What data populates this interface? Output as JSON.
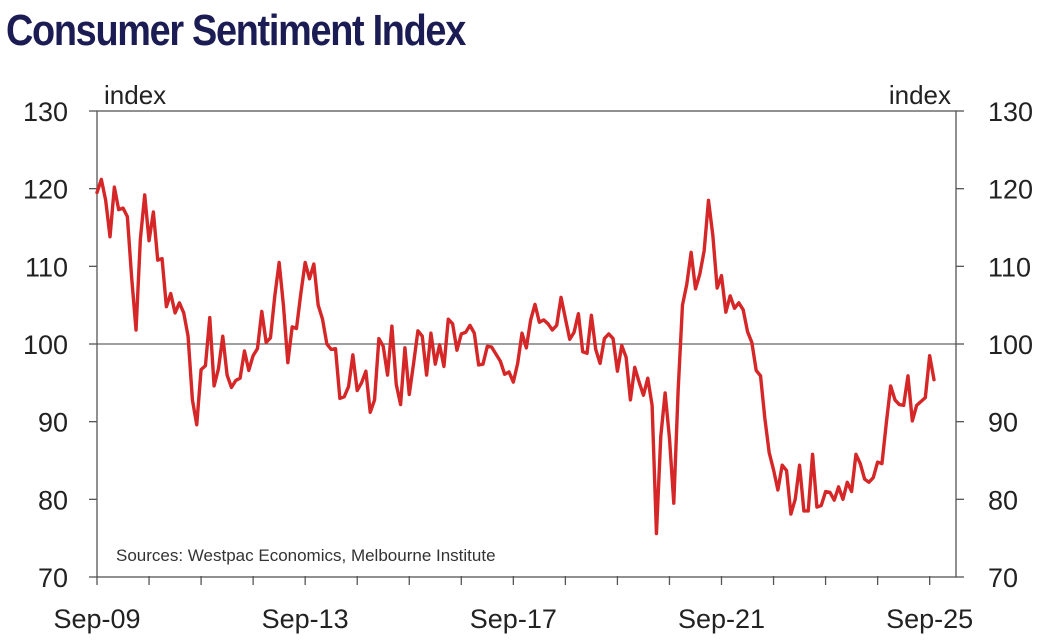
{
  "chart_data": {
    "type": "line",
    "title": "Consumer Sentiment Index",
    "ylabel_left": "index",
    "ylabel_right": "index",
    "source": "Sources: Westpac Economics, Melbourne Institute",
    "ylim": [
      70,
      130
    ],
    "yticks": [
      70,
      80,
      90,
      100,
      110,
      120,
      130
    ],
    "reference_line": 100,
    "x_start": "Sep-09",
    "x_end": "Sep-25",
    "x_tick_labels": [
      "Sep-09",
      "Sep-13",
      "Sep-17",
      "Sep-21",
      "Sep-25"
    ],
    "x_tick_index": [
      0,
      48,
      96,
      144,
      192
    ],
    "series": [
      {
        "name": "Consumer Sentiment Index",
        "color": "#d62728",
        "values": [
          119.5,
          121.2,
          118.5,
          113.8,
          120.2,
          117.3,
          117.5,
          116.4,
          108.5,
          101.8,
          113.5,
          119.2,
          113.3,
          117,
          110.8,
          111,
          104.8,
          106.5,
          104,
          105.3,
          104,
          101,
          92.8,
          89.6,
          96.7,
          97.2,
          103.4,
          94.6,
          96.8,
          101,
          96,
          94.4,
          95.3,
          95.6,
          99.1,
          96.6,
          98.5,
          99.4,
          104.2,
          100.2,
          100.8,
          106.2,
          110.5,
          104.9,
          97.6,
          102.2,
          102,
          106.5,
          110.5,
          108.4,
          110.3,
          105,
          103.2,
          100,
          99.3,
          99.4,
          93,
          93.2,
          94.5,
          98.6,
          94,
          95,
          96.5,
          91.2,
          92.8,
          100.7,
          99.7,
          96,
          102.3,
          94.8,
          92.2,
          99.5,
          93.5,
          97.5,
          101.7,
          101,
          96,
          101.4,
          97.4,
          99.9,
          97.1,
          103.2,
          102.6,
          99.2,
          101.3,
          101.5,
          102.4,
          101.4,
          97.3,
          97.4,
          99.7,
          99.6,
          98.7,
          97.8,
          96.1,
          96.4,
          95.1,
          97.5,
          101.4,
          99.5,
          103.1,
          105.1,
          102.8,
          103.1,
          102.6,
          101.8,
          102.4,
          106,
          103.3,
          100.6,
          101.5,
          103.9,
          99,
          98.8,
          103.7,
          99.3,
          97.5,
          100.7,
          101.3,
          100.7,
          96.5,
          99.8,
          98.3,
          92.8,
          97,
          95.1,
          93.4,
          95.6,
          92.1,
          75.6,
          88.1,
          93.7,
          87.9,
          79.5,
          94,
          105,
          107.7,
          111.8,
          107.1,
          109,
          112,
          118.5,
          114,
          107.2,
          108.8,
          104.1,
          106.2,
          104.6,
          105.3,
          104.4,
          101.6,
          100.2,
          96.6,
          95.9,
          90.4,
          86,
          83.8,
          81.2,
          84.4,
          83.7,
          78.1,
          80,
          84.4,
          78.5,
          78.5,
          85.8,
          79,
          79.2,
          81,
          80.9,
          79.9,
          81.6,
          80,
          82.2,
          81,
          85.8,
          84.6,
          82.6,
          82.2,
          82.8,
          84.8,
          84.6,
          89.8,
          94.6,
          92.8,
          92.2,
          92.1,
          95.9,
          90.1,
          92.1,
          92.6,
          93.1,
          98.5,
          95.4
        ]
      }
    ]
  }
}
